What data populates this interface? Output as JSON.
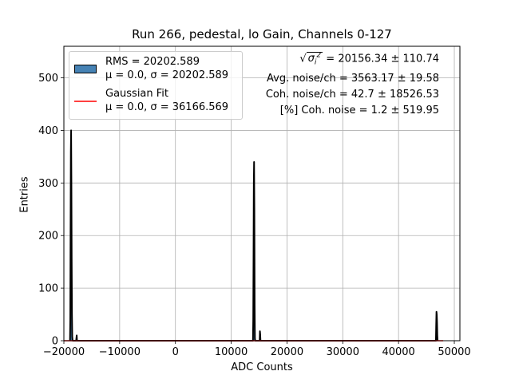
{
  "chart_data": {
    "type": "histogram",
    "title": "Run 266, pedestal, lo Gain, Channels 0-127",
    "xlabel": "ADC Counts",
    "ylabel": "Entries",
    "xlim": [
      -20000,
      51000
    ],
    "ylim": [
      0,
      560
    ],
    "xticks": [
      -20000,
      -10000,
      0,
      10000,
      20000,
      30000,
      40000,
      50000
    ],
    "xtick_labels": [
      "−20000",
      "−10000",
      "0",
      "10000",
      "20000",
      "30000",
      "40000",
      "50000"
    ],
    "yticks": [
      0,
      100,
      200,
      300,
      400,
      500
    ],
    "ytick_labels": [
      "0",
      "100",
      "200",
      "300",
      "400",
      "500"
    ],
    "grid": true,
    "legend_position": "top-left",
    "series": [
      {
        "name": "RMS = 20202.589\nμ = 0.0, σ = 20202.589",
        "kind": "histogram",
        "color": "#4682b4",
        "edgecolor": "#000000",
        "x": [
          -18900,
          -18850,
          -18800,
          -18750,
          -18700,
          -18650,
          -18600,
          -18550,
          -18500,
          -18450,
          -18400,
          -17800,
          -17700,
          -17650,
          13900,
          13950,
          14000,
          14050,
          14100,
          14150,
          14200,
          14250,
          14300,
          15100,
          15150,
          15200,
          15250,
          46700,
          46750,
          46800,
          46850,
          46900,
          46950,
          47000
        ],
        "y": [
          0,
          40,
          210,
          360,
          400,
          300,
          150,
          50,
          8,
          2,
          0,
          0,
          10,
          0,
          0,
          40,
          160,
          300,
          340,
          250,
          70,
          5,
          0,
          0,
          18,
          12,
          0,
          0,
          30,
          55,
          50,
          35,
          10,
          0
        ]
      },
      {
        "name": "Gaussian Fit\nμ = 0.0, σ = 36166.569",
        "kind": "line",
        "color": "#ff0000",
        "x": [
          -20000,
          -10000,
          0,
          10000,
          20000,
          30000,
          40000,
          48000
        ],
        "y": [
          0,
          0,
          0,
          0,
          0,
          0,
          0,
          0
        ]
      }
    ],
    "legend_entries": [
      {
        "line1": "RMS = 20202.589",
        "line2": "μ = 0.0, σ = 20202.589"
      },
      {
        "line1": "Gaussian Fit",
        "line2": "μ = 0.0, σ = 36166.569"
      }
    ],
    "annotations": {
      "sigma_total": " = 20156.34 ± 110.74",
      "sigma_symbol": "σ",
      "avg_noise": "Avg. noise/ch = 3563.17 ± 19.58",
      "coh_noise": "Coh. noise/ch = 42.7 ± 18526.53",
      "coh_noise_pct": "[%] Coh. noise = 1.2 ± 519.95"
    }
  }
}
